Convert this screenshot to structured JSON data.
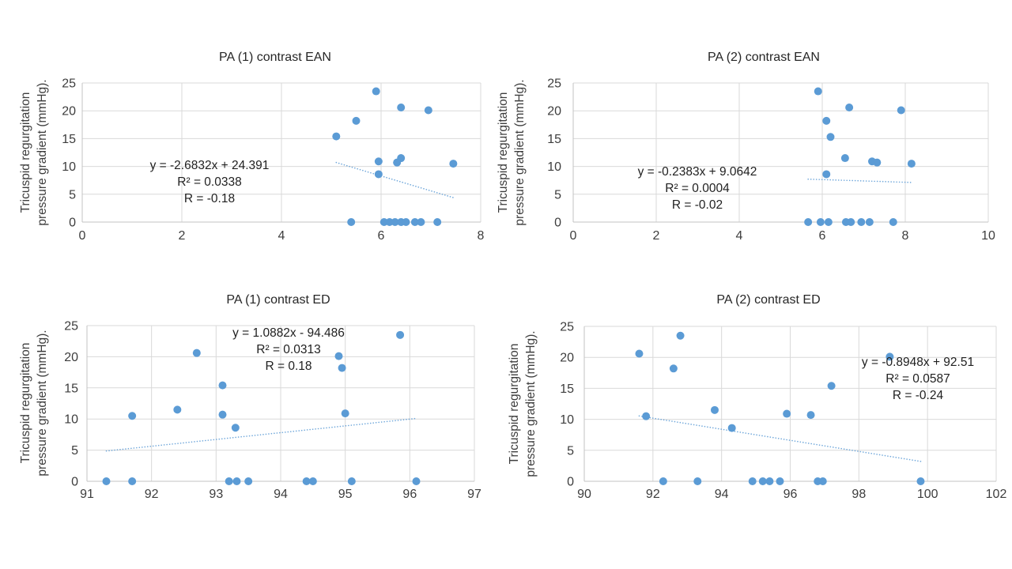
{
  "page": {
    "background": "#ffffff"
  },
  "colors": {
    "point": "#5B9BD5",
    "trendline": "#5B9BD5",
    "gridline": "#D9D9D9",
    "axis_line": "#C3C3C3",
    "tick_text": "#3d3d3d",
    "title_text": "#262626"
  },
  "ylabel_lines": [
    "Tricuspid regurgitation",
    "pressure gradient (mmHg)."
  ],
  "chart_data": [
    {
      "type": "scatter",
      "title": "PA (1) contrast EAN",
      "xlabel": "",
      "ylabel": "Tricuspid regurgitation pressure gradient (mmHg).",
      "xlim": [
        0,
        8
      ],
      "ylim": [
        0,
        25
      ],
      "xticks": [
        0,
        2,
        4,
        6,
        8
      ],
      "yticks": [
        0,
        5,
        10,
        15,
        20,
        25
      ],
      "grid": true,
      "legend": "none",
      "points": [
        [
          5.9,
          23.5
        ],
        [
          6.4,
          20.6
        ],
        [
          6.95,
          20.1
        ],
        [
          5.5,
          18.2
        ],
        [
          5.1,
          15.4
        ],
        [
          6.4,
          11.5
        ],
        [
          6.32,
          10.7
        ],
        [
          5.95,
          10.9
        ],
        [
          7.45,
          10.5
        ],
        [
          5.95,
          8.6
        ],
        [
          5.4,
          0
        ],
        [
          6.06,
          0
        ],
        [
          6.17,
          0
        ],
        [
          6.28,
          0
        ],
        [
          6.4,
          0
        ],
        [
          6.5,
          0
        ],
        [
          6.68,
          0
        ],
        [
          6.8,
          0
        ],
        [
          7.13,
          0
        ]
      ],
      "trendline": {
        "equation_label": "y = -2.6832x + 24.391",
        "r2_label": "R² = 0.0338",
        "r_label": "R = -0.18",
        "slope": -2.6832,
        "intercept": 24.391,
        "style": "dotted"
      }
    },
    {
      "type": "scatter",
      "title": "PA (2) contrast EAN",
      "xlabel": "",
      "ylabel": "Tricuspid regurgitation pressure gradient (mmHg).",
      "xlim": [
        0,
        10
      ],
      "ylim": [
        0,
        25
      ],
      "xticks": [
        0,
        2,
        4,
        6,
        8,
        10
      ],
      "yticks": [
        0,
        5,
        10,
        15,
        20,
        25
      ],
      "grid": true,
      "legend": "none",
      "points": [
        [
          5.9,
          23.5
        ],
        [
          6.65,
          20.6
        ],
        [
          7.9,
          20.1
        ],
        [
          6.1,
          18.2
        ],
        [
          6.2,
          15.3
        ],
        [
          6.55,
          11.5
        ],
        [
          7.2,
          10.9
        ],
        [
          7.32,
          10.7
        ],
        [
          8.15,
          10.5
        ],
        [
          6.1,
          8.6
        ],
        [
          5.66,
          0
        ],
        [
          5.96,
          0
        ],
        [
          6.15,
          0
        ],
        [
          6.57,
          0
        ],
        [
          6.69,
          0
        ],
        [
          6.94,
          0
        ],
        [
          7.14,
          0
        ],
        [
          7.71,
          0
        ]
      ],
      "trendline": {
        "equation_label": "y = -0.2383x + 9.0642",
        "r2_label": "R² = 0.0004",
        "r_label": "R = -0.02",
        "slope": -0.2383,
        "intercept": 9.0642,
        "style": "dotted"
      }
    },
    {
      "type": "scatter",
      "title": "PA (1) contrast ED",
      "xlabel": "",
      "ylabel": "Tricuspid regurgitation pressure gradient (mmHg).",
      "xlim": [
        91,
        97
      ],
      "ylim": [
        0,
        25
      ],
      "xticks": [
        91,
        92,
        93,
        94,
        95,
        96,
        97
      ],
      "yticks": [
        0,
        5,
        10,
        15,
        20,
        25
      ],
      "grid": true,
      "legend": "none",
      "points": [
        [
          95.85,
          23.5
        ],
        [
          92.7,
          20.6
        ],
        [
          94.9,
          20.1
        ],
        [
          94.95,
          18.2
        ],
        [
          93.1,
          15.4
        ],
        [
          92.4,
          11.5
        ],
        [
          93.1,
          10.7
        ],
        [
          95.0,
          10.9
        ],
        [
          91.7,
          10.5
        ],
        [
          93.3,
          8.6
        ],
        [
          91.3,
          0
        ],
        [
          91.7,
          0
        ],
        [
          93.2,
          0
        ],
        [
          93.32,
          0
        ],
        [
          93.5,
          0
        ],
        [
          94.4,
          0
        ],
        [
          94.5,
          0
        ],
        [
          95.1,
          0
        ],
        [
          96.1,
          0
        ]
      ],
      "trendline": {
        "equation_label": "y = 1.0882x - 94.486",
        "r2_label": "R² = 0.0313",
        "r_label": "R = 0.18",
        "slope": 1.0882,
        "intercept": -94.486,
        "style": "dotted"
      }
    },
    {
      "type": "scatter",
      "title": "PA (2) contrast ED",
      "xlabel": "",
      "ylabel": "Tricuspid regurgitation pressure gradient (mmHg).",
      "xlim": [
        90,
        102
      ],
      "ylim": [
        0,
        25
      ],
      "xticks": [
        90,
        92,
        94,
        96,
        98,
        100,
        102
      ],
      "yticks": [
        0,
        5,
        10,
        15,
        20,
        25
      ],
      "grid": true,
      "legend": "none",
      "points": [
        [
          92.8,
          23.5
        ],
        [
          91.6,
          20.6
        ],
        [
          98.9,
          20.1
        ],
        [
          92.6,
          18.2
        ],
        [
          97.2,
          15.4
        ],
        [
          93.8,
          11.5
        ],
        [
          95.9,
          10.9
        ],
        [
          96.6,
          10.7
        ],
        [
          91.8,
          10.5
        ],
        [
          94.3,
          8.6
        ],
        [
          92.3,
          0
        ],
        [
          93.3,
          0
        ],
        [
          94.9,
          0
        ],
        [
          95.2,
          0
        ],
        [
          95.4,
          0
        ],
        [
          95.7,
          0
        ],
        [
          96.8,
          0
        ],
        [
          96.95,
          0
        ],
        [
          99.8,
          0
        ]
      ],
      "trendline": {
        "equation_label": "y = -0.8948x + 92.51",
        "r2_label": "R² = 0.0587",
        "r_label": "R = -0.24",
        "slope": -0.8948,
        "intercept": 92.51,
        "style": "dotted"
      }
    }
  ]
}
